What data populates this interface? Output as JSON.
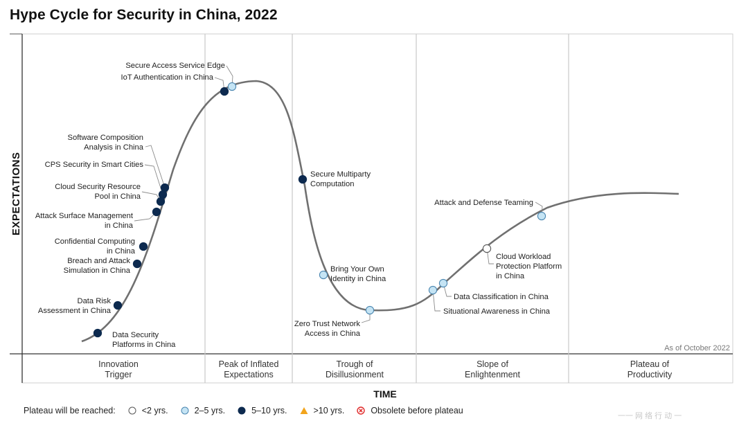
{
  "title": "Hype Cycle for Security in China, 2022",
  "axes": {
    "y_label": "EXPECTATIONS",
    "x_label": "TIME"
  },
  "as_of": "As of October 2022",
  "phases": [
    {
      "id": "innovation",
      "lines": [
        "Innovation",
        "Trigger"
      ]
    },
    {
      "id": "peak",
      "lines": [
        "Peak of Inflated",
        "Expectations"
      ]
    },
    {
      "id": "trough",
      "lines": [
        "Trough of",
        "Disillusionment"
      ]
    },
    {
      "id": "slope",
      "lines": [
        "Slope of",
        "Enlightenment"
      ]
    },
    {
      "id": "plateau",
      "lines": [
        "Plateau of",
        "Productivity"
      ]
    }
  ],
  "legend": {
    "prefix": "Plateau will be reached:",
    "items": [
      {
        "key": "lt2",
        "label": "<2 yrs.",
        "color": "#ffffff"
      },
      {
        "key": "2to5",
        "label": "2–5 yrs.",
        "color": "#c5e4f4"
      },
      {
        "key": "5to10",
        "label": "5–10 yrs.",
        "color": "#0d2a4f"
      },
      {
        "key": "gt10",
        "label": ">10 yrs.",
        "color": "#f2a41c"
      },
      {
        "key": "obsolete",
        "label": "Obsolete before plateau",
        "color": "#e02a2a"
      }
    ]
  },
  "technologies": [
    {
      "lines": [
        "Data Security",
        "Platforms in China"
      ],
      "category": "5to10"
    },
    {
      "lines": [
        "Data Risk",
        "Assessment in China"
      ],
      "category": "5to10"
    },
    {
      "lines": [
        "Breach and Attack",
        "Simulation in China"
      ],
      "category": "5to10"
    },
    {
      "lines": [
        "Confidential Computing",
        "in China"
      ],
      "category": "5to10"
    },
    {
      "lines": [
        "Attack Surface Management",
        "in China"
      ],
      "category": "5to10"
    },
    {
      "lines": [
        "Cloud Security Resource",
        "Pool in China"
      ],
      "category": "5to10"
    },
    {
      "lines": [
        "CPS Security in Smart Cities"
      ],
      "category": "5to10"
    },
    {
      "lines": [
        "Software Composition",
        "Analysis in China"
      ],
      "category": "5to10"
    },
    {
      "lines": [
        "IoT Authentication in China"
      ],
      "category": "5to10"
    },
    {
      "lines": [
        "Secure Access Service Edge"
      ],
      "category": "2to5"
    },
    {
      "lines": [
        "Secure Multiparty",
        "Computation"
      ],
      "category": "5to10"
    },
    {
      "lines": [
        "Bring Your Own",
        "Identity in China"
      ],
      "category": "2to5"
    },
    {
      "lines": [
        "Zero Trust Network",
        "Access in China"
      ],
      "category": "2to5"
    },
    {
      "lines": [
        "Situational Awareness in China"
      ],
      "category": "2to5"
    },
    {
      "lines": [
        "Data Classification in China"
      ],
      "category": "2to5"
    },
    {
      "lines": [
        "Cloud Workload",
        "Protection Platform",
        "in China"
      ],
      "category": "lt2"
    },
    {
      "lines": [
        "Attack and Defense Teaming"
      ],
      "category": "2to5"
    }
  ],
  "watermark": "一一 网 络 行 动 一"
}
